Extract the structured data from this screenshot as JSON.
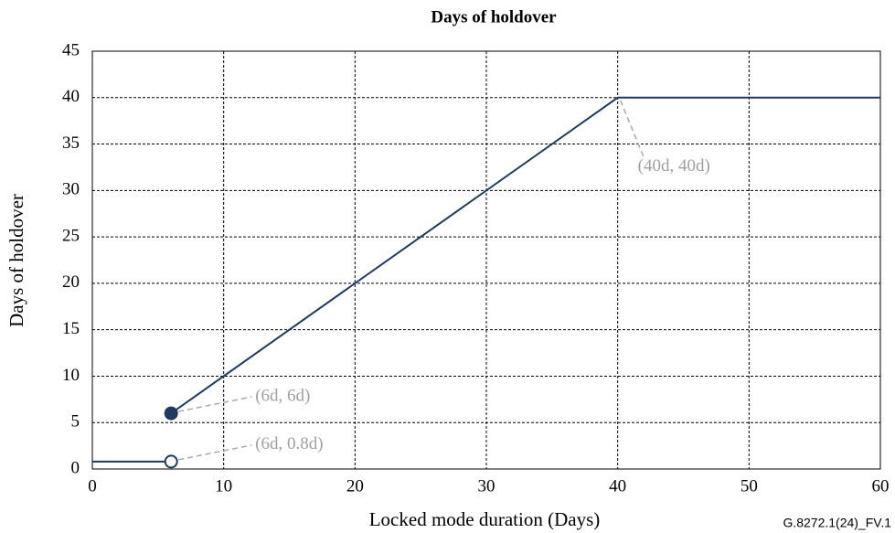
{
  "chart_data": {
    "type": "line",
    "title": "Days of holdover",
    "xlabel": "Locked mode duration (Days)",
    "ylabel": "Days of holdover",
    "x": [
      0,
      6,
      6,
      6,
      40,
      60
    ],
    "values": [
      0.8,
      0.8,
      null,
      6,
      40,
      40
    ],
    "color": "#1f3a5f",
    "xlim": [
      0,
      60
    ],
    "xticks": [
      0,
      10,
      20,
      30,
      40,
      50,
      60
    ],
    "ylim": [
      0,
      45
    ],
    "yticks": [
      0,
      5,
      10,
      15,
      20,
      25,
      30,
      35,
      40,
      45
    ],
    "grid": true,
    "markers": [
      {
        "x": 6,
        "y": 6,
        "filled": true
      },
      {
        "x": 6,
        "y": 0.8,
        "filled": false
      }
    ],
    "annotations": [
      {
        "text": "(40d, 40d)",
        "x": 40,
        "y": 40
      },
      {
        "text": "(6d, 6d)",
        "x": 6,
        "y": 6
      },
      {
        "text": "(6d, 0.8d)",
        "x": 6,
        "y": 0.8
      }
    ],
    "footnote": "G.8272.1(24)_FV.1"
  }
}
